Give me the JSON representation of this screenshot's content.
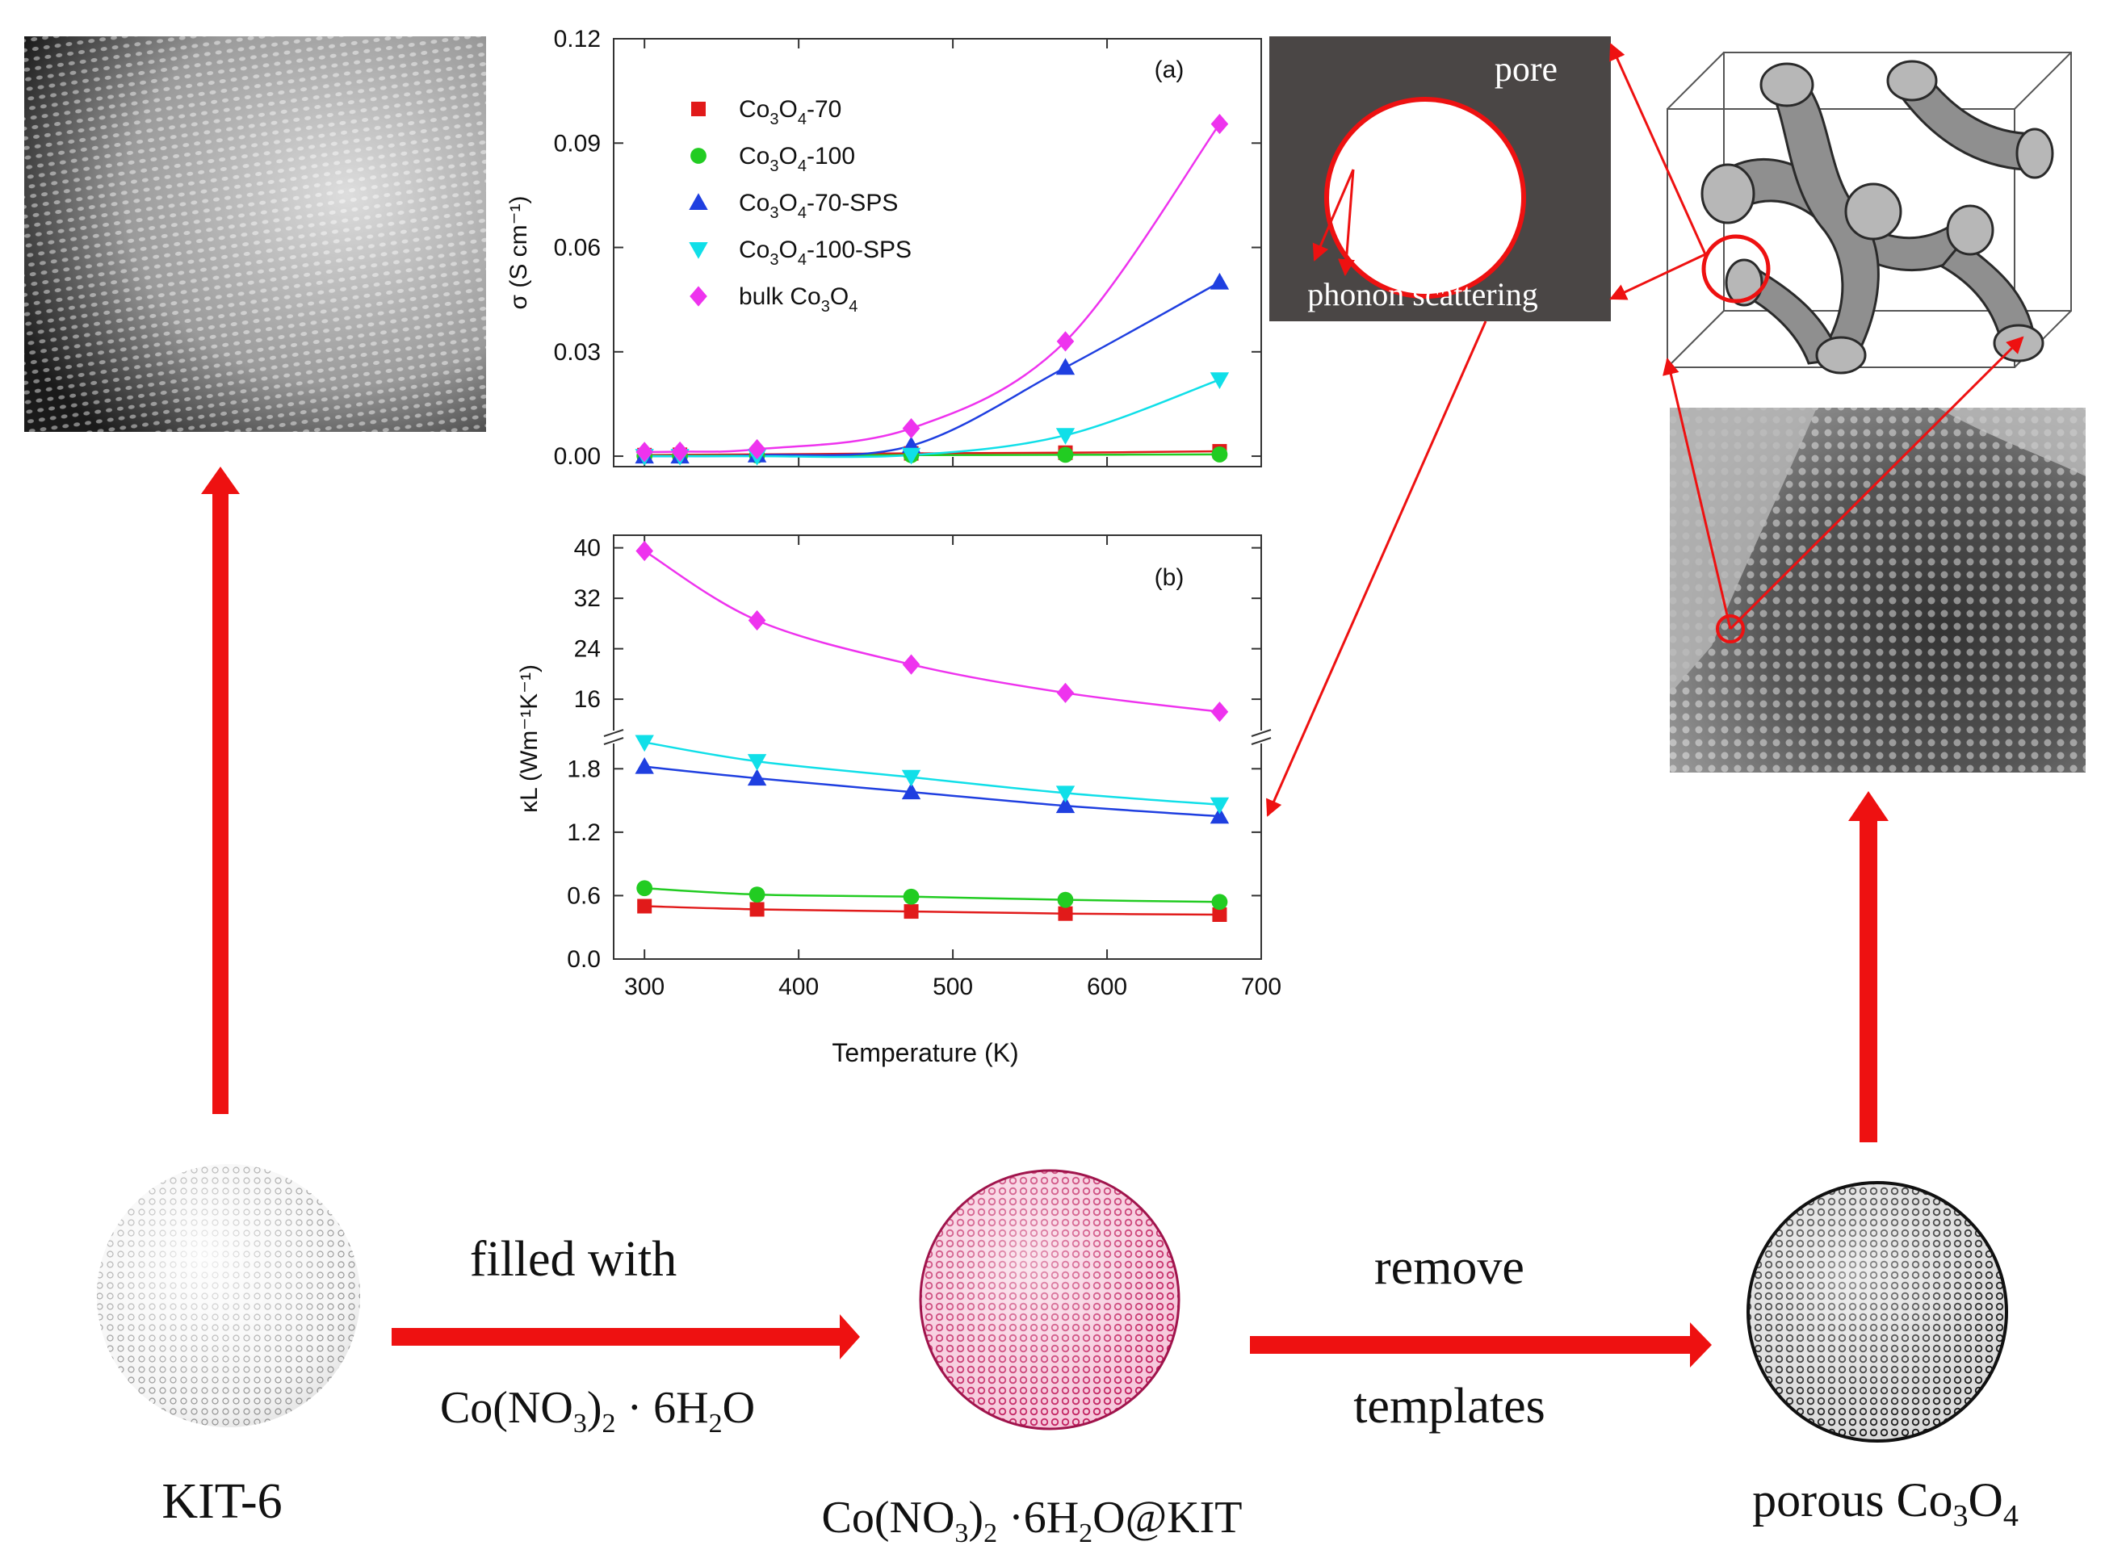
{
  "colors": {
    "red_arrow": "#ee1111",
    "co3o4_70": "#e11a1a",
    "co3o4_100": "#22cc22",
    "co3o4_70_sps": "#1f3fe0",
    "co3o4_100_sps": "#10dfe8",
    "bulk": "#ee33ee",
    "pore_panel": "#4a4645"
  },
  "flow": {
    "kit6_label": "KIT-6",
    "step1_top": "filled with",
    "step1_bottom_base": "Co(NO",
    "step1_bottom_sub1": "3",
    "step1_bottom_mid": ")",
    "step1_bottom_sub2": "2",
    "step1_bottom_tail": " · 6H",
    "step1_bottom_sub3": "2",
    "step1_bottom_end": "O",
    "middle_label_base": "Co(NO",
    "middle_label_sub1": "3",
    "middle_label_mid": ")",
    "middle_label_sub2": "2",
    "middle_label_tail": " ·6H",
    "middle_label_sub3": "2",
    "middle_label_end": "O@KIT",
    "step2_top": "remove",
    "step2_bottom": "templates",
    "final_label_base": "porous Co",
    "final_label_sub1": "3",
    "final_label_mid": "O",
    "final_label_sub2": "4"
  },
  "pore_panel": {
    "pore_label": "pore",
    "scatter_label": "phonon scattering"
  },
  "chart_data": [
    {
      "type": "scatter-line",
      "panel_label": "(a)",
      "ylabel": "σ (S cm⁻¹)",
      "xlabel": "",
      "xlim": [
        280,
        700
      ],
      "ylim": [
        -0.003,
        0.12
      ],
      "yticks": [
        "0.00",
        "0.03",
        "0.06",
        "0.09",
        "0.12"
      ],
      "yticks_values": [
        0.0,
        0.03,
        0.06,
        0.09,
        0.12
      ],
      "legend_position": "top-left",
      "series": [
        {
          "name": "Co3O4-70",
          "legend_label": "Co3O4-70",
          "marker": "square",
          "x": [
            300,
            323,
            373,
            473,
            573,
            673
          ],
          "y": [
            0.0003,
            0.0004,
            0.0005,
            0.0008,
            0.001,
            0.0014
          ]
        },
        {
          "name": "Co3O4-100",
          "legend_label": "Co3O4-100",
          "marker": "circle",
          "x": [
            300,
            323,
            373,
            473,
            573,
            673
          ],
          "y": [
            0.0001,
            0.0001,
            0.0002,
            0.0003,
            0.0004,
            0.0005
          ]
        },
        {
          "name": "Co3O4-70-SPS",
          "legend_label": "Co3O4-70-SPS",
          "marker": "triangle-up",
          "x": [
            300,
            323,
            373,
            473,
            573,
            673
          ],
          "y": [
            0.0,
            0.0,
            0.0003,
            0.003,
            0.0255,
            0.05
          ]
        },
        {
          "name": "Co3O4-100-SPS",
          "legend_label": "Co3O4-100-SPS",
          "marker": "triangle-down",
          "x": [
            300,
            323,
            373,
            473,
            573,
            673
          ],
          "y": [
            0.0,
            0.0,
            0.0,
            0.0003,
            0.006,
            0.022
          ]
        },
        {
          "name": "bulk Co3O4",
          "legend_label": "bulk Co3O4",
          "marker": "diamond",
          "x": [
            300,
            323,
            373,
            473,
            573,
            673
          ],
          "y": [
            0.0012,
            0.0013,
            0.002,
            0.008,
            0.033,
            0.0955
          ]
        }
      ]
    },
    {
      "type": "scatter-line",
      "panel_label": "(b)",
      "ylabel": "κL (Wm⁻¹K⁻¹)",
      "xlabel": "Temperature (K)",
      "xlim": [
        280,
        700
      ],
      "xticks": [
        "300",
        "400",
        "500",
        "600",
        "700"
      ],
      "xticks_values": [
        300,
        400,
        500,
        600,
        700
      ],
      "broken_y_axis": true,
      "ylim_lower": [
        0,
        2.1
      ],
      "ylim_upper": [
        10,
        42
      ],
      "yticks": [
        "0.0",
        "0.6",
        "1.2",
        "1.8",
        "16",
        "24",
        "32",
        "40"
      ],
      "yticks_values": [
        0.0,
        0.6,
        1.2,
        1.8,
        16,
        24,
        32,
        40
      ],
      "series": [
        {
          "name": "Co3O4-70",
          "marker": "square",
          "x": [
            300,
            373,
            473,
            573,
            673
          ],
          "y": [
            0.5,
            0.47,
            0.45,
            0.43,
            0.42
          ]
        },
        {
          "name": "Co3O4-100",
          "marker": "circle",
          "x": [
            300,
            373,
            473,
            573,
            673
          ],
          "y": [
            0.67,
            0.61,
            0.59,
            0.56,
            0.54
          ]
        },
        {
          "name": "Co3O4-70-SPS",
          "marker": "triangle-up",
          "x": [
            300,
            373,
            473,
            573,
            673
          ],
          "y": [
            1.82,
            1.71,
            1.58,
            1.45,
            1.35
          ]
        },
        {
          "name": "Co3O4-100-SPS",
          "marker": "triangle-down",
          "x": [
            300,
            373,
            473,
            573,
            673
          ],
          "y": [
            2.05,
            1.87,
            1.72,
            1.57,
            1.46
          ]
        },
        {
          "name": "bulk Co3O4",
          "marker": "diamond",
          "x": [
            300,
            373,
            473,
            573,
            673
          ],
          "y": [
            39.5,
            28.5,
            21.5,
            17.0,
            14.0
          ]
        }
      ]
    }
  ]
}
